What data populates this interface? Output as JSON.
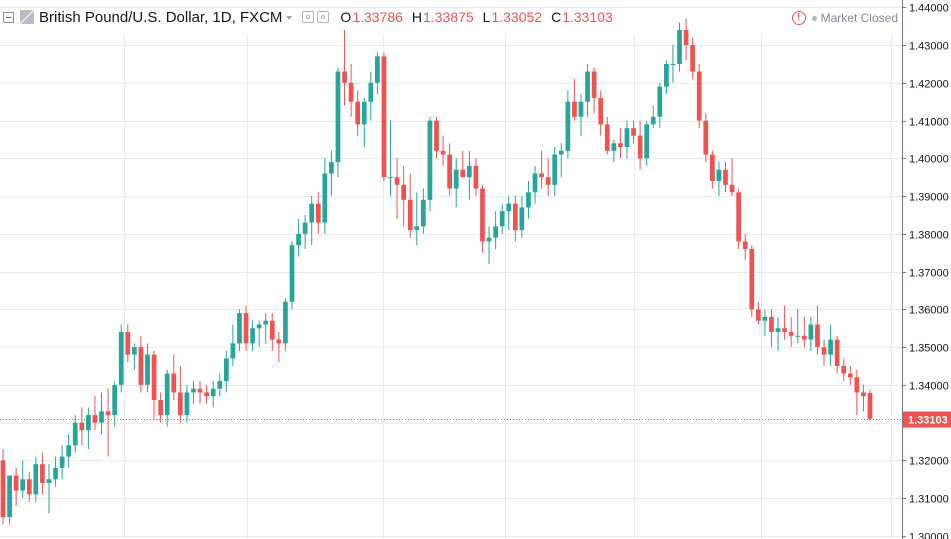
{
  "header": {
    "symbol": "British Pound/U.S. Dollar, 1D, FXCM",
    "ohlc": [
      {
        "key": "O",
        "value": "1.33786"
      },
      {
        "key": "H",
        "value": "1.33875"
      },
      {
        "key": "L",
        "value": "1.33052"
      },
      {
        "key": "C",
        "value": "1.33103"
      }
    ],
    "warning_glyph": "!",
    "market_status": "Market Closed"
  },
  "colors": {
    "up": "#26a69a",
    "down": "#ef5350",
    "grid": "#e9ebef",
    "axis_text": "#131722",
    "last_price_bg": "#ef5350"
  },
  "chart_data": {
    "type": "candlestick",
    "symbol": "British Pound/U.S. Dollar",
    "interval": "1D",
    "source": "FXCM",
    "ylim": [
      1.296,
      1.443
    ],
    "y_ticks": [
      "1.30000",
      "1.31000",
      "1.32000",
      "1.33000",
      "1.34000",
      "1.35000",
      "1.36000",
      "1.37000",
      "1.38000",
      "1.39000",
      "1.40000",
      "1.41000",
      "1.42000",
      "1.43000",
      "1.44000"
    ],
    "grid": true,
    "last_price": "1.33103",
    "candles": [
      [
        1.32,
        1.323,
        1.303,
        1.305
      ],
      [
        1.305,
        1.316,
        1.303,
        1.316
      ],
      [
        1.316,
        1.318,
        1.308,
        1.312
      ],
      [
        1.312,
        1.32,
        1.31,
        1.315
      ],
      [
        1.315,
        1.317,
        1.309,
        1.311
      ],
      [
        1.311,
        1.321,
        1.309,
        1.319
      ],
      [
        1.319,
        1.322,
        1.311,
        1.314
      ],
      [
        1.314,
        1.319,
        1.306,
        1.315
      ],
      [
        1.315,
        1.321,
        1.313,
        1.318
      ],
      [
        1.318,
        1.324,
        1.315,
        1.321
      ],
      [
        1.321,
        1.327,
        1.318,
        1.324
      ],
      [
        1.324,
        1.332,
        1.322,
        1.33
      ],
      [
        1.33,
        1.334,
        1.324,
        1.328
      ],
      [
        1.328,
        1.334,
        1.323,
        1.332
      ],
      [
        1.332,
        1.337,
        1.328,
        1.33
      ],
      [
        1.33,
        1.338,
        1.327,
        1.333
      ],
      [
        1.333,
        1.339,
        1.321,
        1.332
      ],
      [
        1.332,
        1.341,
        1.329,
        1.34
      ],
      [
        1.34,
        1.356,
        1.338,
        1.354
      ],
      [
        1.354,
        1.356,
        1.346,
        1.348
      ],
      [
        1.348,
        1.351,
        1.344,
        1.35
      ],
      [
        1.35,
        1.353,
        1.338,
        1.34
      ],
      [
        1.34,
        1.351,
        1.338,
        1.348
      ],
      [
        1.348,
        1.349,
        1.331,
        1.336
      ],
      [
        1.336,
        1.338,
        1.33,
        1.332
      ],
      [
        1.332,
        1.344,
        1.329,
        1.343
      ],
      [
        1.343,
        1.348,
        1.336,
        1.338
      ],
      [
        1.338,
        1.345,
        1.33,
        1.332
      ],
      [
        1.332,
        1.34,
        1.33,
        1.338
      ],
      [
        1.338,
        1.341,
        1.335,
        1.339
      ],
      [
        1.339,
        1.341,
        1.335,
        1.338
      ],
      [
        1.338,
        1.34,
        1.335,
        1.337
      ],
      [
        1.337,
        1.341,
        1.334,
        1.339
      ],
      [
        1.339,
        1.343,
        1.337,
        1.341
      ],
      [
        1.341,
        1.349,
        1.338,
        1.347
      ],
      [
        1.347,
        1.356,
        1.345,
        1.351
      ],
      [
        1.351,
        1.36,
        1.349,
        1.359
      ],
      [
        1.359,
        1.361,
        1.349,
        1.351
      ],
      [
        1.351,
        1.357,
        1.349,
        1.355
      ],
      [
        1.355,
        1.357,
        1.35,
        1.356
      ],
      [
        1.356,
        1.359,
        1.351,
        1.357
      ],
      [
        1.357,
        1.359,
        1.349,
        1.352
      ],
      [
        1.352,
        1.354,
        1.346,
        1.351
      ],
      [
        1.351,
        1.363,
        1.349,
        1.362
      ],
      [
        1.362,
        1.378,
        1.36,
        1.377
      ],
      [
        1.377,
        1.384,
        1.374,
        1.38
      ],
      [
        1.38,
        1.385,
        1.376,
        1.383
      ],
      [
        1.383,
        1.39,
        1.377,
        1.388
      ],
      [
        1.388,
        1.391,
        1.38,
        1.383
      ],
      [
        1.383,
        1.4,
        1.38,
        1.396
      ],
      [
        1.396,
        1.402,
        1.39,
        1.399
      ],
      [
        1.399,
        1.424,
        1.395,
        1.423
      ],
      [
        1.423,
        1.434,
        1.414,
        1.42
      ],
      [
        1.42,
        1.425,
        1.411,
        1.415
      ],
      [
        1.415,
        1.418,
        1.406,
        1.409
      ],
      [
        1.409,
        1.416,
        1.403,
        1.415
      ],
      [
        1.415,
        1.423,
        1.41,
        1.42
      ],
      [
        1.42,
        1.428,
        1.417,
        1.427
      ],
      [
        1.427,
        1.428,
        1.394,
        1.395
      ],
      [
        1.395,
        1.41,
        1.39,
        1.395
      ],
      [
        1.395,
        1.4,
        1.384,
        1.393
      ],
      [
        1.393,
        1.398,
        1.382,
        1.389
      ],
      [
        1.389,
        1.396,
        1.379,
        1.381
      ],
      [
        1.381,
        1.391,
        1.377,
        1.382
      ],
      [
        1.382,
        1.392,
        1.38,
        1.389
      ],
      [
        1.389,
        1.411,
        1.386,
        1.41
      ],
      [
        1.41,
        1.411,
        1.4,
        1.402
      ],
      [
        1.402,
        1.406,
        1.398,
        1.401
      ],
      [
        1.401,
        1.404,
        1.39,
        1.392
      ],
      [
        1.392,
        1.4,
        1.387,
        1.397
      ],
      [
        1.397,
        1.402,
        1.395,
        1.395
      ],
      [
        1.395,
        1.402,
        1.389,
        1.398
      ],
      [
        1.398,
        1.4,
        1.39,
        1.392
      ],
      [
        1.392,
        1.393,
        1.375,
        1.378
      ],
      [
        1.378,
        1.382,
        1.372,
        1.379
      ],
      [
        1.379,
        1.386,
        1.376,
        1.382
      ],
      [
        1.382,
        1.388,
        1.38,
        1.386
      ],
      [
        1.386,
        1.39,
        1.381,
        1.388
      ],
      [
        1.388,
        1.39,
        1.378,
        1.381
      ],
      [
        1.381,
        1.39,
        1.379,
        1.387
      ],
      [
        1.387,
        1.394,
        1.384,
        1.391
      ],
      [
        1.391,
        1.398,
        1.388,
        1.396
      ],
      [
        1.396,
        1.402,
        1.392,
        1.395
      ],
      [
        1.395,
        1.4,
        1.39,
        1.393
      ],
      [
        1.393,
        1.403,
        1.39,
        1.401
      ],
      [
        1.401,
        1.404,
        1.395,
        1.402
      ],
      [
        1.402,
        1.418,
        1.4,
        1.415
      ],
      [
        1.415,
        1.421,
        1.41,
        1.411
      ],
      [
        1.411,
        1.417,
        1.406,
        1.415
      ],
      [
        1.415,
        1.425,
        1.411,
        1.423
      ],
      [
        1.423,
        1.424,
        1.412,
        1.416
      ],
      [
        1.416,
        1.418,
        1.406,
        1.409
      ],
      [
        1.409,
        1.411,
        1.401,
        1.402
      ],
      [
        1.402,
        1.405,
        1.399,
        1.404
      ],
      [
        1.404,
        1.408,
        1.4,
        1.403
      ],
      [
        1.403,
        1.41,
        1.4,
        1.408
      ],
      [
        1.408,
        1.41,
        1.404,
        1.406
      ],
      [
        1.406,
        1.41,
        1.397,
        1.4
      ],
      [
        1.4,
        1.41,
        1.398,
        1.409
      ],
      [
        1.409,
        1.414,
        1.408,
        1.411
      ],
      [
        1.411,
        1.42,
        1.408,
        1.419
      ],
      [
        1.419,
        1.426,
        1.417,
        1.425
      ],
      [
        1.425,
        1.43,
        1.42,
        1.425
      ],
      [
        1.425,
        1.436,
        1.423,
        1.434
      ],
      [
        1.434,
        1.437,
        1.426,
        1.43
      ],
      [
        1.43,
        1.432,
        1.421,
        1.423
      ],
      [
        1.423,
        1.425,
        1.408,
        1.41
      ],
      [
        1.41,
        1.412,
        1.399,
        1.401
      ],
      [
        1.401,
        1.402,
        1.392,
        1.394
      ],
      [
        1.394,
        1.399,
        1.39,
        1.397
      ],
      [
        1.397,
        1.399,
        1.391,
        1.393
      ],
      [
        1.393,
        1.4,
        1.39,
        1.391
      ],
      [
        1.391,
        1.392,
        1.376,
        1.378
      ],
      [
        1.378,
        1.38,
        1.373,
        1.376
      ],
      [
        1.376,
        1.377,
        1.358,
        1.36
      ],
      [
        1.36,
        1.362,
        1.356,
        1.357
      ],
      [
        1.357,
        1.36,
        1.353,
        1.358
      ],
      [
        1.358,
        1.36,
        1.35,
        1.354
      ],
      [
        1.354,
        1.358,
        1.349,
        1.355
      ],
      [
        1.355,
        1.361,
        1.352,
        1.354
      ],
      [
        1.354,
        1.358,
        1.35,
        1.353
      ],
      [
        1.353,
        1.36,
        1.351,
        1.353
      ],
      [
        1.353,
        1.358,
        1.35,
        1.352
      ],
      [
        1.352,
        1.358,
        1.349,
        1.356
      ],
      [
        1.356,
        1.361,
        1.348,
        1.35
      ],
      [
        1.35,
        1.352,
        1.345,
        1.348
      ],
      [
        1.348,
        1.356,
        1.345,
        1.352
      ],
      [
        1.352,
        1.353,
        1.343,
        1.345
      ],
      [
        1.345,
        1.347,
        1.341,
        1.343
      ],
      [
        1.343,
        1.345,
        1.34,
        1.342
      ],
      [
        1.342,
        1.344,
        1.332,
        1.338
      ],
      [
        1.338,
        1.34,
        1.333,
        1.337
      ],
      [
        1.33786,
        1.33875,
        1.33052,
        1.33103
      ]
    ]
  }
}
